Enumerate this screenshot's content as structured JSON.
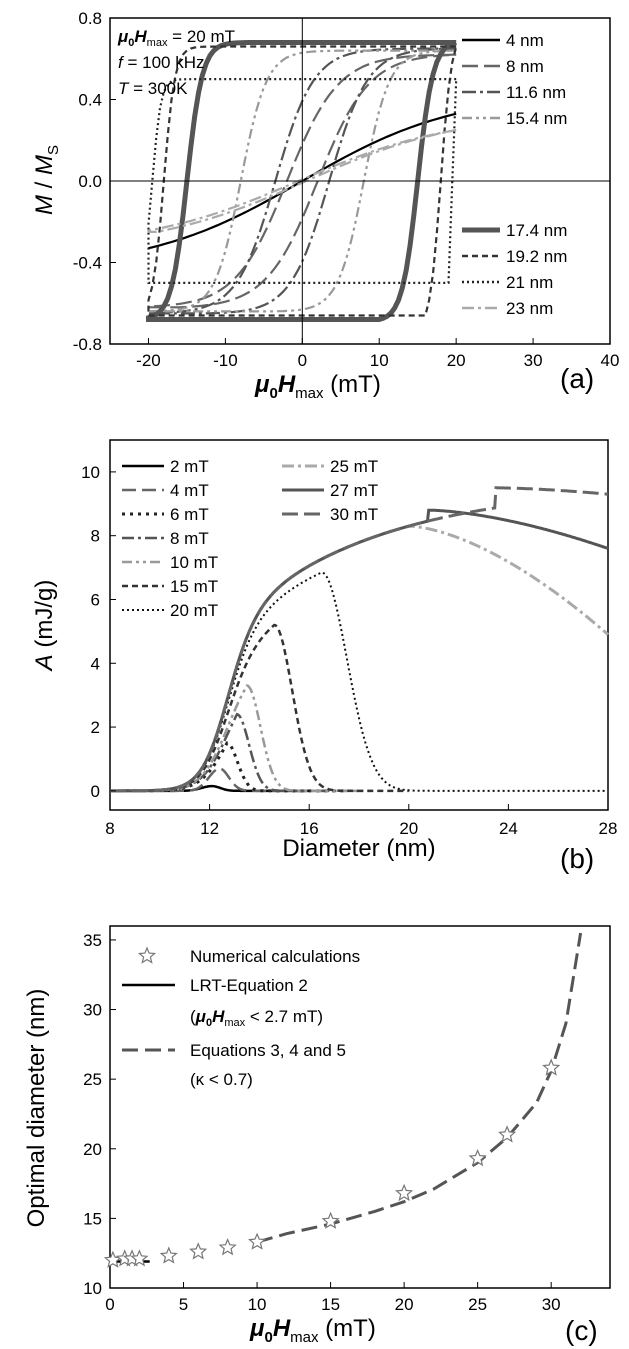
{
  "chart_data": [
    {
      "panel": "(a)",
      "type": "line",
      "xlabel": {
        "sym": "μ",
        "sub0": "0",
        "sym2": "H",
        "sub": "max",
        "unit": " (mT)"
      },
      "ylabel": {
        "a": "M",
        "mid": " / ",
        "b": "M",
        "sub": "S"
      },
      "xlim": [
        -25,
        40
      ],
      "ylim": [
        -0.8,
        0.8
      ],
      "xticks": [
        "-20",
        "-10",
        "0",
        "10",
        "20",
        "30",
        "40"
      ],
      "yticks": [
        "-0.8",
        "-0.4",
        "0.0",
        "0.4",
        "0.8"
      ],
      "conditions": [
        {
          "sym": "μ",
          "sub0": "0",
          "sym2": "H",
          "sub": "max",
          "rest": " = 20 mT"
        },
        {
          "sym": "f",
          "rest": " = 100 kHz"
        },
        {
          "sym": "T",
          "rest": " = 300K"
        }
      ],
      "series": [
        {
          "name": "4 nm",
          "color": "#000000",
          "dash": "",
          "hc": 0.0,
          "mr": 0.0,
          "mmax": 0.33,
          "sharp": 1
        },
        {
          "name": "8 nm",
          "color": "#666666",
          "dash": "16,6",
          "hc": 2.0,
          "mr": 0.08,
          "mmax": 0.62,
          "sharp": 3
        },
        {
          "name": "11.6 nm",
          "color": "#555555",
          "dash": "14,4,3,4",
          "hc": 3.5,
          "mr": 0.2,
          "mmax": 0.65,
          "sharp": 4
        },
        {
          "name": "15.4 nm",
          "color": "#999999",
          "dash": "10,4,3,4,3,4",
          "hc": 8.0,
          "mr": 0.3,
          "mmax": 0.64,
          "sharp": 6
        },
        {
          "name": "17.4 nm",
          "color": "#555555",
          "dash": "",
          "width": 5,
          "hc": 15.0,
          "mr": 0.45,
          "mmax": 0.68,
          "sharp": 10
        },
        {
          "name": "19.2 nm",
          "color": "#333333",
          "dash": "6,4",
          "hc": 18.0,
          "mr": 0.5,
          "mmax": 0.66,
          "sharp": 14
        },
        {
          "name": "21 nm",
          "color": "#222222",
          "dash": "2,3",
          "hc": 19.5,
          "mr": 0.28,
          "mmax": 0.5,
          "sharp": 18
        },
        {
          "name": "23 nm",
          "color": "#aaaaaa",
          "dash": "12,4,3,4",
          "hc": 0.5,
          "mr": 0.02,
          "mmax": 0.25,
          "sharp": 1
        }
      ]
    },
    {
      "panel": "(b)",
      "type": "line",
      "xlabel": "Diameter (nm)",
      "ylabel": {
        "a": "A",
        "rest": " (mJ/g)"
      },
      "xlim": [
        8,
        28
      ],
      "ylim": [
        -0.6,
        11
      ],
      "xticks": [
        "8",
        "12",
        "16",
        "20",
        "24",
        "28"
      ],
      "yticks": [
        "0",
        "2",
        "4",
        "6",
        "8",
        "10"
      ],
      "series": [
        {
          "name": "2 mT",
          "color": "#000000",
          "dash": "",
          "width": 2.5,
          "peak_x": 12.1,
          "peak_y": 0.15,
          "end": 16
        },
        {
          "name": "4 mT",
          "color": "#666666",
          "dash": "14,6",
          "width": 2.5,
          "peak_x": 12.4,
          "peak_y": 0.7,
          "end": 17
        },
        {
          "name": "6 mT",
          "color": "#222222",
          "dash": "3,5",
          "width": 3,
          "peak_x": 12.7,
          "peak_y": 1.5,
          "end": 17.5
        },
        {
          "name": "8 mT",
          "color": "#555555",
          "dash": "12,4,3,4",
          "width": 2.5,
          "peak_x": 13.1,
          "peak_y": 2.4,
          "end": 18
        },
        {
          "name": "10 mT",
          "color": "#999999",
          "dash": "10,4,3,4,3,4",
          "width": 2.5,
          "peak_x": 13.5,
          "peak_y": 3.3,
          "end": 18.5
        },
        {
          "name": "15 mT",
          "color": "#333333",
          "dash": "6,4",
          "width": 2.5,
          "peak_x": 14.6,
          "peak_y": 5.2,
          "end": 20
        },
        {
          "name": "20 mT",
          "color": "#111111",
          "dash": "2,3",
          "width": 2,
          "peak_x": 16.5,
          "peak_y": 6.85,
          "end": 28
        },
        {
          "name": "25 mT",
          "color": "#aaaaaa",
          "dash": "12,4,3,4",
          "width": 3,
          "peak_x": 20.0,
          "peak_y": 8.3,
          "end": 28,
          "end_y": 4.9
        },
        {
          "name": "27 mT",
          "color": "#555555",
          "dash": "",
          "width": 3,
          "peak_x": 20.8,
          "peak_y": 8.8,
          "end": 28,
          "end_y": 7.6
        },
        {
          "name": "30 mT",
          "color": "#666666",
          "dash": "16,6",
          "width": 3,
          "peak_x": 23.5,
          "peak_y": 9.5,
          "end": 28,
          "end_y": 9.3
        }
      ]
    },
    {
      "panel": "(c)",
      "type": "scatter",
      "xlabel": {
        "sym": "μ",
        "sub0": "0",
        "sym2": "H",
        "sub": "max",
        "unit": " (mT)"
      },
      "ylabel": "Optimal diameter (nm)",
      "xlim": [
        0,
        34
      ],
      "ylim": [
        10,
        36
      ],
      "xticks": [
        "0",
        "5",
        "10",
        "15",
        "20",
        "25",
        "30"
      ],
      "yticks": [
        "10",
        "15",
        "20",
        "25",
        "30",
        "35"
      ],
      "legend": [
        {
          "label": "Numerical calculations"
        },
        {
          "label": "LRT-Equation 2"
        },
        {
          "label_pre": "(",
          "sym": "μ",
          "sub0": "0",
          "sym2": "H",
          "sub": "max",
          "label_post": " < 2.7 mT)"
        },
        {
          "label": "Equations 3, 4 and 5"
        },
        {
          "label": "(κ < 0.7)"
        }
      ],
      "points": {
        "x": [
          0.2,
          1,
          1.5,
          2,
          4,
          6,
          8,
          10,
          15,
          20,
          25,
          27,
          30
        ],
        "y": [
          12.0,
          12.1,
          12.1,
          12.1,
          12.3,
          12.6,
          12.9,
          13.3,
          14.8,
          16.8,
          19.3,
          21.0,
          25.8
        ]
      },
      "lrt": {
        "x": [
          0,
          2.7
        ],
        "y": [
          11.9,
          11.9
        ]
      },
      "equations": {
        "x": [
          10,
          12,
          15,
          18,
          20,
          22,
          25,
          27,
          29,
          30,
          31,
          32
        ],
        "y": [
          13.3,
          13.9,
          14.6,
          15.5,
          16.2,
          17.1,
          19.0,
          20.8,
          23.3,
          25.6,
          29.0,
          35.5
        ]
      }
    }
  ]
}
